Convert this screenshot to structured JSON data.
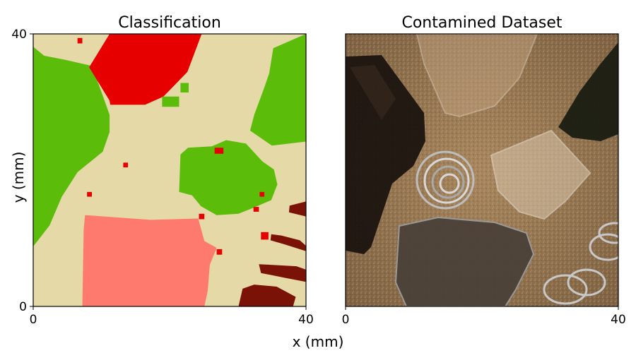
{
  "figure": {
    "x_label": "x (mm)",
    "y_label": "y (mm)"
  },
  "chart_data": [
    {
      "type": "heatmap",
      "title": "Classification",
      "xlabel": "x (mm)",
      "ylabel": "y (mm)",
      "xlim": [
        0,
        40
      ],
      "ylim": [
        0,
        40
      ],
      "x_ticks": [
        "0",
        "40"
      ],
      "y_ticks": [
        "0",
        "40"
      ],
      "grid": false,
      "class_colors": {
        "sand": "#e6d9a8",
        "glass": "#5bbd0a",
        "plastic": "#e60000",
        "stone": "#ff7a6e",
        "metal": "#7a1208"
      },
      "regions": [
        {
          "class": "glass",
          "polygon": [
            [
              0,
              38.1
            ],
            [
              1.6,
              36.8
            ],
            [
              4.7,
              36.2
            ],
            [
              8.6,
              35.3
            ],
            [
              10.1,
              31.2
            ],
            [
              11.2,
              28.1
            ],
            [
              11.2,
              25.6
            ],
            [
              10.2,
              22.7
            ],
            [
              6.5,
              19.7
            ],
            [
              4.2,
              16.1
            ],
            [
              2.4,
              11.9
            ],
            [
              0,
              8.8
            ]
          ]
        },
        {
          "class": "plastic",
          "polygon": [
            [
              11.2,
              40
            ],
            [
              24.7,
              40
            ],
            [
              23.8,
              37.6
            ],
            [
              22.6,
              34.4
            ],
            [
              19.1,
              30.8
            ],
            [
              16.4,
              29.6
            ],
            [
              11.3,
              29.6
            ],
            [
              11.2,
              30.2
            ],
            [
              8.2,
              35.1
            ],
            [
              11.2,
              40
            ]
          ]
        },
        {
          "class": "glass",
          "polygon": [
            [
              40,
              40
            ],
            [
              35.2,
              37.9
            ],
            [
              34.6,
              34.2
            ],
            [
              33.8,
              31.9
            ],
            [
              32.4,
              28.1
            ],
            [
              31.8,
              25.8
            ],
            [
              35,
              23.6
            ],
            [
              40,
              24.2
            ]
          ]
        },
        {
          "class": "glass",
          "polygon": [
            [
              21.6,
              22.3
            ],
            [
              22.7,
              23.3
            ],
            [
              26.2,
              23.5
            ],
            [
              28.3,
              24.4
            ],
            [
              31.2,
              23.9
            ],
            [
              33.6,
              21.3
            ],
            [
              35.3,
              20.1
            ],
            [
              35.8,
              17.9
            ],
            [
              34.9,
              15.6
            ],
            [
              32.1,
              14.4
            ],
            [
              30.1,
              13.6
            ],
            [
              26.9,
              13.4
            ],
            [
              24.6,
              14.7
            ],
            [
              23.3,
              16.3
            ],
            [
              21.4,
              16.8
            ]
          ]
        },
        {
          "class": "stone",
          "polygon": [
            [
              7.2,
              0
            ],
            [
              25.1,
              0
            ],
            [
              25.6,
              2.3
            ],
            [
              25.9,
              6.1
            ],
            [
              26.9,
              8.6
            ],
            [
              25.1,
              9.6
            ],
            [
              24.2,
              12.9
            ],
            [
              17.2,
              12.7
            ],
            [
              7.6,
              13.4
            ],
            [
              7.4,
              11.3
            ]
          ]
        },
        {
          "class": "metal",
          "polygon": [
            [
              30.1,
              0
            ],
            [
              38.1,
              0
            ],
            [
              38.5,
              1.4
            ],
            [
              35.7,
              2.9
            ],
            [
              32.4,
              3.2
            ],
            [
              30.7,
              2.6
            ]
          ]
        },
        {
          "class": "metal",
          "polygon": [
            [
              33.1,
              6.2
            ],
            [
              38.6,
              5.9
            ],
            [
              40,
              5.4
            ],
            [
              40,
              3.6
            ],
            [
              36.9,
              4.2
            ],
            [
              33.4,
              4.9
            ]
          ]
        },
        {
          "class": "metal",
          "polygon": [
            [
              34.9,
              10.6
            ],
            [
              36.4,
              10.4
            ],
            [
              39.1,
              9.7
            ],
            [
              40,
              8.9
            ],
            [
              40,
              8.1
            ],
            [
              36.9,
              9.1
            ],
            [
              34.8,
              9.7
            ]
          ]
        },
        {
          "class": "metal",
          "polygon": [
            [
              37.6,
              14.8
            ],
            [
              40,
              15.4
            ],
            [
              40,
              13.2
            ],
            [
              37.5,
              13.8
            ]
          ]
        },
        {
          "class": "plastic",
          "polygon": [
            [
              26.6,
              23.3
            ],
            [
              27.9,
              23.3
            ],
            [
              27.9,
              22.4
            ],
            [
              26.6,
              22.4
            ]
          ]
        },
        {
          "class": "plastic",
          "polygon": [
            [
              33.4,
              9.8
            ],
            [
              34.5,
              9.8
            ],
            [
              34.5,
              10.9
            ],
            [
              33.4,
              10.9
            ]
          ]
        },
        {
          "class": "plastic",
          "polygon": [
            [
              24.3,
              12.8
            ],
            [
              25.1,
              12.8
            ],
            [
              25.1,
              13.6
            ],
            [
              24.3,
              13.6
            ]
          ]
        },
        {
          "class": "plastic",
          "polygon": [
            [
              26.9,
              7.6
            ],
            [
              27.7,
              7.6
            ],
            [
              27.7,
              8.4
            ],
            [
              26.9,
              8.4
            ]
          ]
        },
        {
          "class": "plastic",
          "polygon": [
            [
              13.2,
              20.4
            ],
            [
              13.9,
              20.4
            ],
            [
              13.9,
              21.1
            ],
            [
              13.2,
              21.1
            ]
          ]
        },
        {
          "class": "plastic",
          "polygon": [
            [
              7.9,
              16.1
            ],
            [
              8.6,
              16.1
            ],
            [
              8.6,
              16.8
            ],
            [
              7.9,
              16.8
            ]
          ]
        },
        {
          "class": "plastic",
          "polygon": [
            [
              33.2,
              16.1
            ],
            [
              33.9,
              16.1
            ],
            [
              33.9,
              16.8
            ],
            [
              33.2,
              16.8
            ]
          ]
        },
        {
          "class": "plastic",
          "polygon": [
            [
              32.3,
              13.9
            ],
            [
              33.1,
              13.9
            ],
            [
              33.1,
              14.6
            ],
            [
              32.3,
              14.6
            ]
          ]
        },
        {
          "class": "plastic",
          "polygon": [
            [
              6.5,
              38.6
            ],
            [
              7.2,
              38.6
            ],
            [
              7.2,
              39.4
            ],
            [
              6.5,
              39.4
            ]
          ]
        },
        {
          "class": "glass",
          "polygon": [
            [
              18.9,
              29.3
            ],
            [
              21.4,
              29.3
            ],
            [
              21.4,
              30.8
            ],
            [
              18.9,
              30.8
            ]
          ]
        },
        {
          "class": "glass",
          "polygon": [
            [
              21.6,
              31.4
            ],
            [
              22.8,
              31.4
            ],
            [
              22.8,
              32.8
            ],
            [
              21.6,
              32.8
            ]
          ]
        }
      ]
    },
    {
      "type": "image",
      "title": "Contamined Dataset",
      "xlim": [
        0,
        40
      ],
      "ylim": [
        0,
        40
      ],
      "x_ticks": [
        "0",
        "40"
      ]
    }
  ]
}
